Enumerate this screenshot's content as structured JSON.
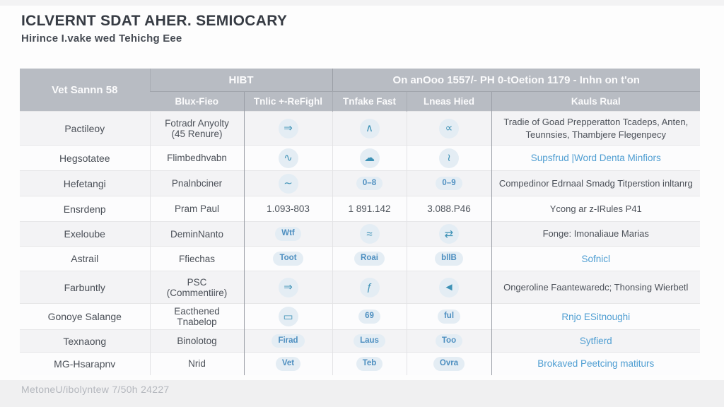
{
  "title": "ICLVERNT SDAT AHER. SEMIOCARY",
  "subtitle": "Hirince I.vake wed Tehichg Eee",
  "footer": {
    "note": "MetoneU/ibolyntew 7/50h 24227"
  },
  "colors": {
    "header_bg": "#b8bcc3",
    "link_blue": "#4f9ed2",
    "badge_bg": "#e4edf4",
    "icon_teal": "#3f92b6",
    "zebra_light": "#f3f3f5"
  },
  "table": {
    "header": {
      "col1": "Vet Sannn 58",
      "group2": "HIBT",
      "group3": "On anOoo 1557/- PH 0-tOetion 1179 - Inhn on t'on",
      "sub": [
        "Blux-Fieo",
        "Tnlic +-ReFighl",
        "Tnfake Fast",
        "Lneas Hied",
        "Kauls Rual"
      ]
    },
    "rows": [
      {
        "name": "Pactileoy",
        "detail": "Fotradr Anyolty",
        "detail2": "(45 Renure)",
        "c3": {
          "kind": "icon",
          "icon": "dash-arrow-icon",
          "glyph": "⇒"
        },
        "c4": {
          "kind": "icon",
          "icon": "peak-icon",
          "glyph": "∧"
        },
        "c5": {
          "kind": "icon",
          "icon": "key-icon",
          "glyph": "∝"
        },
        "result": {
          "kind": "dark",
          "text": "Tradie of Goad Prepperatton Tcadeps, Anten, Teunnsies, Thambjere Flegenpecy"
        }
      },
      {
        "name": "Hegsotatee",
        "detail": "Flimbedhvabn",
        "c3": {
          "kind": "icon",
          "icon": "wave-check-icon",
          "glyph": "∿"
        },
        "c4": {
          "kind": "icon",
          "icon": "cloud-icon",
          "glyph": "☁"
        },
        "c5": {
          "kind": "icon",
          "icon": "curl-icon",
          "glyph": "≀"
        },
        "result": {
          "kind": "link",
          "text": "Supsfrud |Word Denta Minfiors"
        }
      },
      {
        "name": "Hefetangi",
        "detail": "Pnalnbciner",
        "c3": {
          "kind": "icon",
          "icon": "wave-icon",
          "glyph": "∼"
        },
        "c4": {
          "kind": "text",
          "name": "key-badge",
          "label": "0–8"
        },
        "c5": {
          "kind": "text",
          "name": "key-badge",
          "label": "0–9"
        },
        "result": {
          "kind": "dark",
          "text": "Compedinor Edrnaal Smadg Titperstion inltanrg"
        }
      },
      {
        "name": "Ensrdenp",
        "detail": "Pram Paul",
        "c3": {
          "kind": "num",
          "label": "1.093-803"
        },
        "c4": {
          "kind": "num",
          "label": "1 891.142"
        },
        "c5": {
          "kind": "num",
          "label": "3.088.P46"
        },
        "result": {
          "kind": "dark",
          "text": "Ycong ar z-IRules P41"
        }
      },
      {
        "name": "Exeloube",
        "detail": "DeminNanto",
        "c3": {
          "kind": "text",
          "name": "wtf-badge",
          "label": "Wtf"
        },
        "c4": {
          "kind": "icon",
          "icon": "waves-icon",
          "glyph": "≈"
        },
        "c5": {
          "kind": "icon",
          "icon": "arrows-icon",
          "glyph": "⇄"
        },
        "result": {
          "kind": "dark",
          "text": "Fonge: Imonaliaue Marias"
        }
      },
      {
        "name": "Astrail",
        "detail": "Ffiechas",
        "c3": {
          "kind": "text",
          "label": "Toot"
        },
        "c4": {
          "kind": "text",
          "label": "Roai"
        },
        "c5": {
          "kind": "text",
          "label": "bllB"
        },
        "result": {
          "kind": "link",
          "text": "Sofnicl"
        }
      },
      {
        "name": "Farbuntly",
        "detail": "PSC",
        "detail2": "(Commentiire)",
        "c3": {
          "kind": "icon",
          "icon": "marker-icon",
          "glyph": "⇒"
        },
        "c4": {
          "kind": "icon",
          "icon": "f-curve-icon",
          "glyph": "ƒ"
        },
        "c5": {
          "kind": "icon",
          "icon": "plane-icon",
          "glyph": "◄"
        },
        "result": {
          "kind": "dark",
          "text": "Ongeroline Faantewaredc; Thonsing Wierbetl"
        }
      },
      {
        "name": "Gonoye Salange",
        "detail": "Eacthened Tnabelop",
        "c3": {
          "kind": "icon",
          "icon": "card-icon",
          "glyph": "▭"
        },
        "c4": {
          "kind": "text",
          "name": "link-badge",
          "label": "69"
        },
        "c5": {
          "kind": "text",
          "label": "ful"
        },
        "result": {
          "kind": "link",
          "text": "Rnjo ESitnoughi"
        }
      },
      {
        "name": "Texnaong",
        "detail": "Binolotog",
        "c3": {
          "kind": "text",
          "label": "Firad"
        },
        "c4": {
          "kind": "text",
          "label": "Laus"
        },
        "c5": {
          "kind": "text",
          "label": "Too"
        },
        "result": {
          "kind": "link",
          "text": "Sytfierd"
        }
      },
      {
        "name": "MG-Hsarapnv",
        "detail": "Nrid",
        "c3": {
          "kind": "text",
          "label": "Vet"
        },
        "c4": {
          "kind": "text",
          "label": "Teb"
        },
        "c5": {
          "kind": "text",
          "label": "Ovra"
        },
        "result": {
          "kind": "link",
          "text": "Brokaved Peetcing matiturs"
        }
      }
    ]
  }
}
